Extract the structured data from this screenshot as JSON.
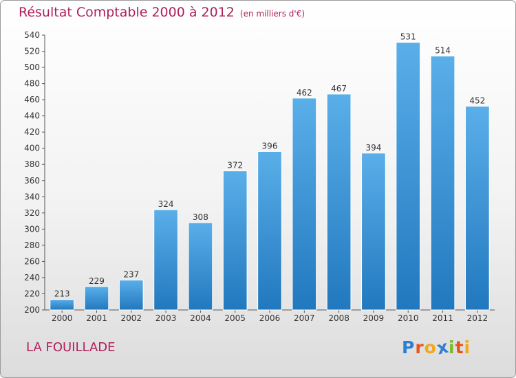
{
  "chart_data": {
    "type": "bar",
    "title": "Résultat Comptable 2000 à 2012",
    "subtitle": "(en milliers d'€)",
    "categories": [
      "2000",
      "2001",
      "2002",
      "2003",
      "2004",
      "2005",
      "2006",
      "2007",
      "2008",
      "2009",
      "2010",
      "2011",
      "2012"
    ],
    "values": [
      213,
      229,
      237,
      324,
      308,
      372,
      396,
      462,
      467,
      394,
      531,
      514,
      452
    ],
    "ylim": [
      200,
      540
    ],
    "yticks": [
      200,
      220,
      240,
      260,
      280,
      300,
      320,
      340,
      360,
      380,
      400,
      420,
      440,
      460,
      480,
      500,
      520,
      540
    ],
    "grid": false,
    "bar_color": "#3a93d6"
  },
  "place_name": "LA FOUILLADE",
  "logo": {
    "letters": [
      {
        "ch": "P",
        "color": "#2f7fd0"
      },
      {
        "ch": "r",
        "color": "#e8531f"
      },
      {
        "ch": "o",
        "color": "#f0a91c"
      },
      {
        "ch": "x",
        "color": "#2f7fd0"
      },
      {
        "ch": "i",
        "color": "#7dba2a"
      },
      {
        "ch": "t",
        "color": "#e8531f"
      },
      {
        "ch": "i",
        "color": "#f0a91c"
      }
    ]
  }
}
